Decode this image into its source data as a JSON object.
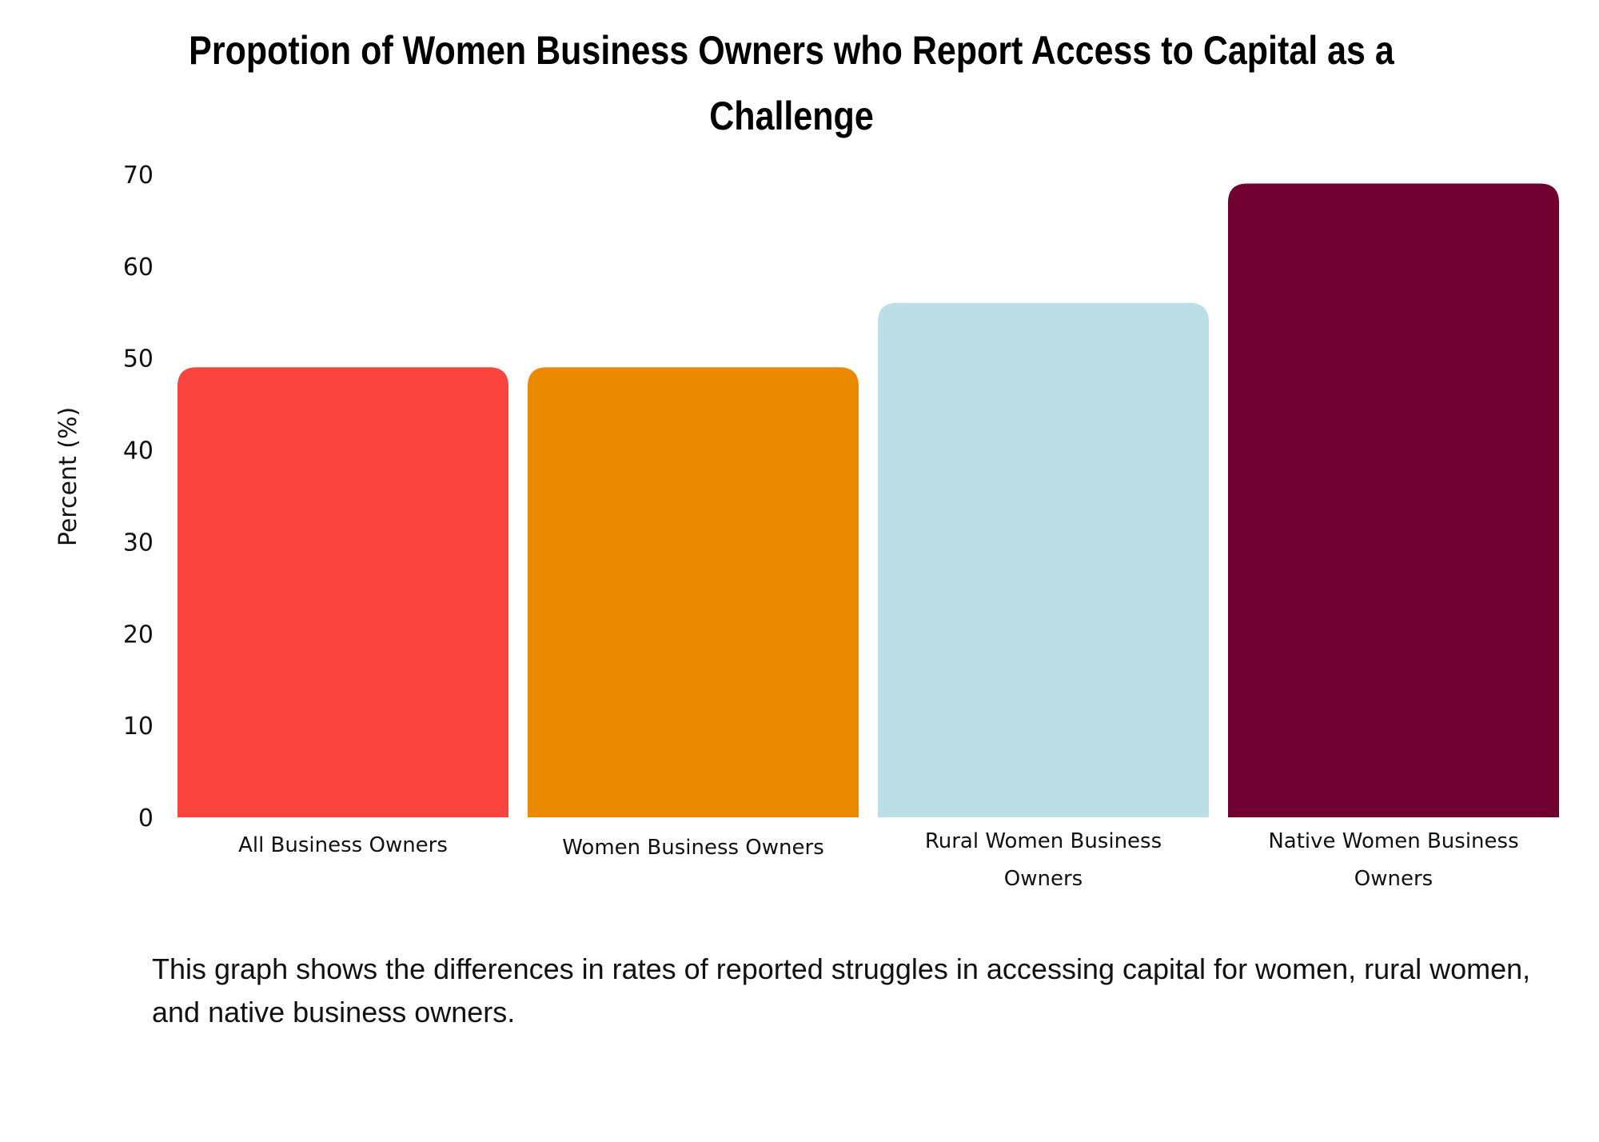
{
  "chart_data": {
    "type": "bar",
    "title": "Propotion of Women Business Owners who Report Access to Capital as a Challenge",
    "xlabel": "",
    "ylabel": "Percent  (%)",
    "ylim": [
      0,
      70
    ],
    "yticks": [
      0,
      10,
      20,
      30,
      40,
      50,
      60,
      70
    ],
    "grid": false,
    "categories": [
      [
        "All Business Owners"
      ],
      [
        "Women Business Owners"
      ],
      [
        "Rural Women Business",
        "Owners"
      ],
      [
        "Native Women Business",
        "Owners"
      ]
    ],
    "values": [
      49,
      49,
      56,
      69
    ],
    "colors": [
      "#F9453E",
      "#EB8A00",
      "#BCDEE6",
      "#6F0030"
    ]
  },
  "caption": "This graph shows the differences in rates of reported struggles in accessing capital for women, rural women, and native business owners."
}
